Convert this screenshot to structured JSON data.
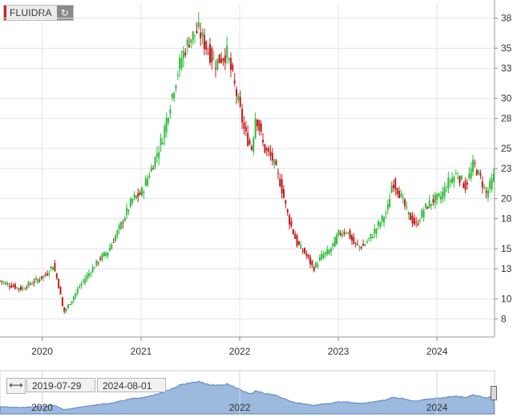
{
  "ticker": {
    "name": "FLUIDRA",
    "refresh_icon": "refresh-icon"
  },
  "colors": {
    "up": "#2ebd3a",
    "down": "#c41a1a",
    "grid": "#e4e4e4",
    "nav_fill": "#9cb9de",
    "nav_line": "#5b82bd"
  },
  "navigator": {
    "range_icon": "horizontal-arrows-icon",
    "start_date": "2019-07-29",
    "end_date": "2024-08-01",
    "year_labels": [
      "2020",
      "2022",
      "2024"
    ]
  },
  "chart_data": {
    "type": "candlestick",
    "title": "",
    "xlabel": "",
    "ylabel": "",
    "y_ticks": [
      8,
      10,
      13,
      15,
      18,
      20,
      23,
      25,
      28,
      30,
      33,
      35,
      38
    ],
    "y_axis_position": "right",
    "x_ticks": [
      "2020",
      "2021",
      "2022",
      "2023",
      "2024"
    ],
    "grid": true,
    "interval": "weekly",
    "series": [
      {
        "name": "FLUIDRA",
        "anchors": [
          [
            "2019-07-29",
            11.8
          ],
          [
            "2019-09-01",
            11.4
          ],
          [
            "2019-10-15",
            11.0
          ],
          [
            "2019-12-01",
            11.7
          ],
          [
            "2020-01-15",
            12.4
          ],
          [
            "2020-02-10",
            13.4
          ],
          [
            "2020-03-01",
            11.5
          ],
          [
            "2020-03-20",
            8.6
          ],
          [
            "2020-04-15",
            9.7
          ],
          [
            "2020-05-20",
            11.3
          ],
          [
            "2020-06-20",
            12.5
          ],
          [
            "2020-08-01",
            14.0
          ],
          [
            "2020-09-01",
            14.8
          ],
          [
            "2020-10-15",
            17.2
          ],
          [
            "2020-12-01",
            20.0
          ],
          [
            "2021-01-01",
            20.5
          ],
          [
            "2021-02-15",
            23.5
          ],
          [
            "2021-03-20",
            26.0
          ],
          [
            "2021-05-01",
            31.0
          ],
          [
            "2021-06-01",
            34.2
          ],
          [
            "2021-07-01",
            36.0
          ],
          [
            "2021-08-01",
            36.8
          ],
          [
            "2021-09-01",
            35.0
          ],
          [
            "2021-10-01",
            33.5
          ],
          [
            "2021-11-15",
            34.5
          ],
          [
            "2021-12-15",
            31.0
          ],
          [
            "2022-01-01",
            29.0
          ],
          [
            "2022-01-20",
            26.5
          ],
          [
            "2022-02-15",
            25.0
          ],
          [
            "2022-03-01",
            28.5
          ],
          [
            "2022-04-01",
            25.0
          ],
          [
            "2022-05-01",
            24.0
          ],
          [
            "2022-06-01",
            21.5
          ],
          [
            "2022-07-01",
            18.0
          ],
          [
            "2022-08-01",
            15.5
          ],
          [
            "2022-09-01",
            14.5
          ],
          [
            "2022-10-01",
            13.0
          ],
          [
            "2022-11-01",
            14.3
          ],
          [
            "2022-12-01",
            14.8
          ],
          [
            "2023-01-01",
            16.5
          ],
          [
            "2023-02-01",
            16.8
          ],
          [
            "2023-03-01",
            15.4
          ],
          [
            "2023-04-01",
            15.2
          ],
          [
            "2023-05-01",
            16.2
          ],
          [
            "2023-06-01",
            17.5
          ],
          [
            "2023-07-01",
            18.8
          ],
          [
            "2023-07-20",
            21.8
          ],
          [
            "2023-08-15",
            20.5
          ],
          [
            "2023-09-15",
            18.5
          ],
          [
            "2023-10-15",
            17.3
          ],
          [
            "2023-11-15",
            19.0
          ],
          [
            "2023-12-15",
            19.8
          ],
          [
            "2024-01-15",
            20.2
          ],
          [
            "2024-02-15",
            21.8
          ],
          [
            "2024-03-15",
            22.5
          ],
          [
            "2024-04-15",
            21.2
          ],
          [
            "2024-05-15",
            23.5
          ],
          [
            "2024-06-10",
            22.0
          ],
          [
            "2024-07-01",
            20.5
          ],
          [
            "2024-08-01",
            22.3
          ]
        ]
      }
    ]
  }
}
